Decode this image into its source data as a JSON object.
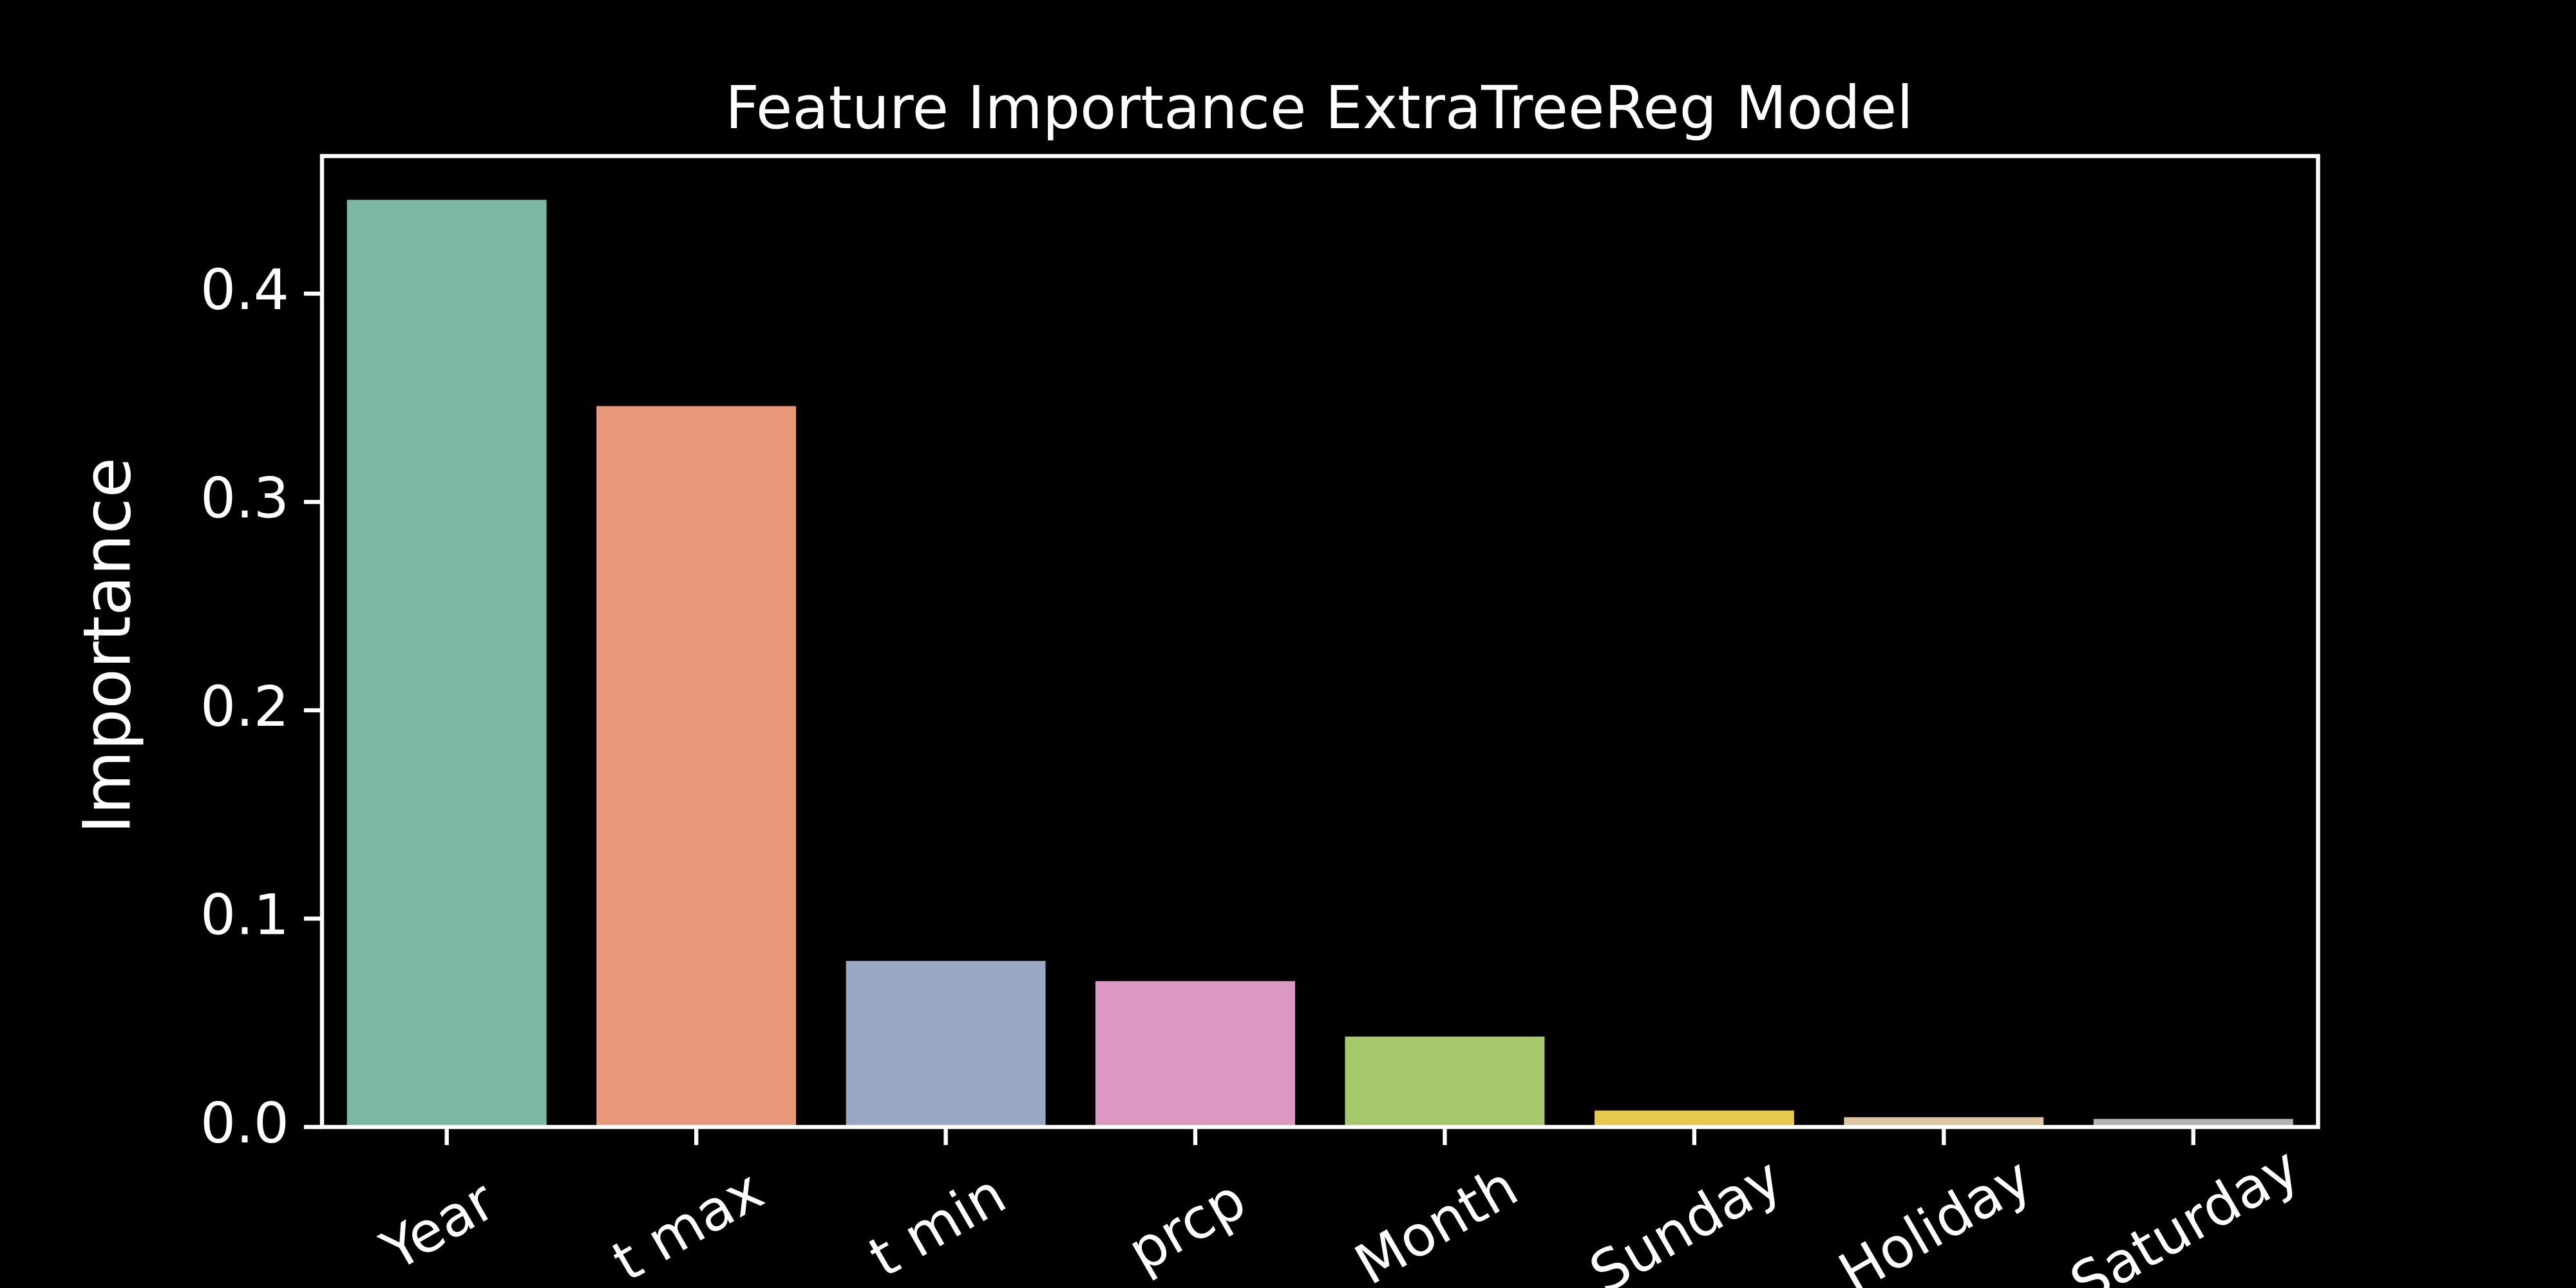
{
  "chart_data": {
    "type": "bar",
    "title": "Feature Importance ExtraTreeReg Model",
    "ylabel": "Importance",
    "categories": [
      "Year",
      "t max",
      "t min",
      "prcp",
      "Month",
      "Sunday",
      "Holiday",
      "Saturday"
    ],
    "values": [
      0.445,
      0.346,
      0.0797,
      0.07,
      0.0434,
      0.0079,
      0.0047,
      0.0039
    ],
    "colors": [
      "#7ab8a4",
      "#e9997a",
      "#97a7c4",
      "#db98c1",
      "#a5c86a",
      "#e6c94a",
      "#dec7a0",
      "#b3b3b3"
    ],
    "ylim": [
      0,
      0.466
    ],
    "yticks": [
      {
        "value": 0,
        "label": "0.0"
      },
      0.1,
      0.2,
      0.3,
      0.4
    ]
  }
}
